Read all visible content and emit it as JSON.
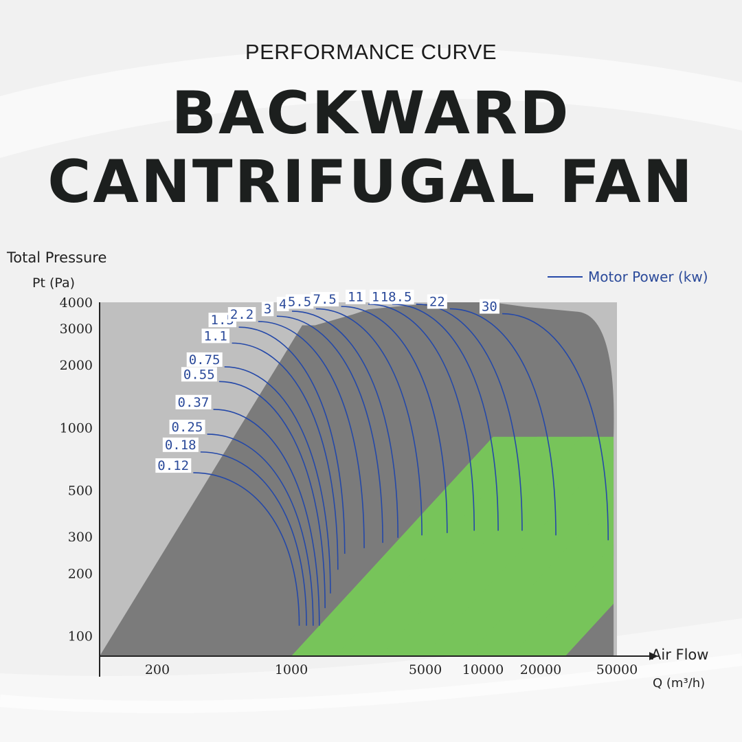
{
  "header": {
    "kicker": "PERFORMANCE CURVE",
    "title_line1": "BACKWARD",
    "title_line2": "CANTRIFUGAL FAN"
  },
  "colors": {
    "background": "#f1f1f1",
    "dark_band": "#7b7b7b",
    "light_region": "#bfbfbf",
    "green_band": "#77c45a",
    "curve": "#2448a8",
    "label": "#2b4a9a"
  },
  "chart_data": {
    "type": "area",
    "title": "",
    "ylabel": "Total Pressure",
    "ylabel_unit": "Pt (Pa)",
    "xlabel": "Air Flow",
    "xlabel_unit": "Q (m³/h)",
    "x_scale": "log",
    "y_scale": "log",
    "xlim": [
      100,
      50000
    ],
    "ylim": [
      80,
      4000
    ],
    "x_ticks": [
      200,
      1000,
      5000,
      10000,
      20000,
      50000
    ],
    "y_ticks": [
      100,
      200,
      300,
      500,
      1000,
      2000,
      3000,
      4000
    ],
    "legend": {
      "label": "Motor Power (kw)",
      "placement": "top-right"
    },
    "series": [
      {
        "name": "0.12",
        "q_max": 1100,
        "pt_max": 620
      },
      {
        "name": "0.18",
        "q_max": 1200,
        "pt_max": 780
      },
      {
        "name": "0.25",
        "q_max": 1300,
        "pt_max": 950
      },
      {
        "name": "0.37",
        "q_max": 1400,
        "pt_max": 1250
      },
      {
        "name": "0.55",
        "q_max": 1500,
        "pt_max": 1700
      },
      {
        "name": "0.75",
        "q_max": 1600,
        "pt_max": 2000
      },
      {
        "name": "1.1",
        "q_max": 1750,
        "pt_max": 2600
      },
      {
        "name": "1.5",
        "q_max": 1900,
        "pt_max": 3100
      },
      {
        "name": "2.2",
        "q_max": 2400,
        "pt_max": 3300
      },
      {
        "name": "3",
        "q_max": 3000,
        "pt_max": 3500
      },
      {
        "name": "4",
        "q_max": 3600,
        "pt_max": 3700
      },
      {
        "name": "5.5",
        "q_max": 4800,
        "pt_max": 3800
      },
      {
        "name": "7.5",
        "q_max": 6500,
        "pt_max": 3900
      },
      {
        "name": "11",
        "q_max": 9000,
        "pt_max": 4000
      },
      {
        "name": "15",
        "q_max": 12000,
        "pt_max": 4000
      },
      {
        "name": "18.5",
        "q_max": 16000,
        "pt_max": 4000
      },
      {
        "name": "22",
        "q_max": 24000,
        "pt_max": 3800
      },
      {
        "name": "30",
        "q_max": 45000,
        "pt_max": 3600
      }
    ]
  }
}
